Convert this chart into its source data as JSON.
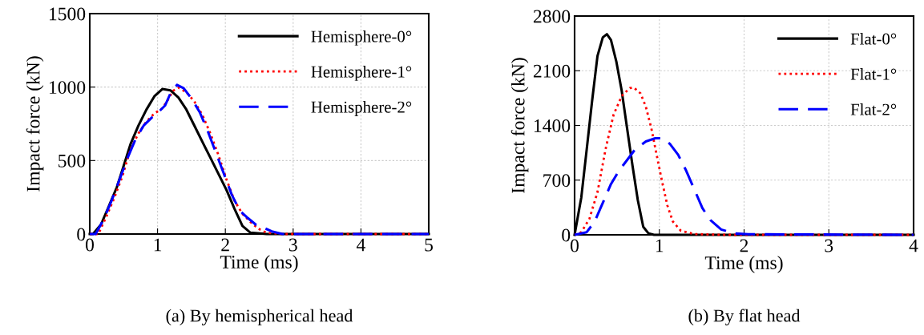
{
  "chart_data": [
    {
      "type": "line",
      "xlabel": "Time (ms)",
      "ylabel": "Impact force (kN)",
      "xlim": [
        0,
        5
      ],
      "xticks": [
        0,
        1,
        2,
        3,
        4,
        5
      ],
      "ylim": [
        0,
        1500
      ],
      "yticks": [
        0,
        500,
        1000,
        1500
      ],
      "grid": true,
      "legend": "top right",
      "annotations": [
        "(a) By hemispherical head"
      ],
      "series": [
        {
          "name": "Hemisphere-0°",
          "color": "#000000",
          "line_style": "solid",
          "x": [
            0,
            0.047,
            0.165,
            0.283,
            0.4,
            0.5,
            0.6,
            0.717,
            0.835,
            0.953,
            1.071,
            1.189,
            1.307,
            1.425,
            1.543,
            1.661,
            1.78,
            1.898,
            2.016,
            2.134,
            2.252,
            2.37,
            2.61,
            5
          ],
          "values": [
            0,
            0,
            64,
            191,
            319,
            464,
            610,
            737,
            846,
            937,
            987,
            978,
            929,
            847,
            738,
            628,
            519,
            410,
            301,
            173,
            55,
            9,
            0,
            0
          ]
        },
        {
          "name": "Hemisphere-1°",
          "color": "#ff0000",
          "line_style": "dotted",
          "x": [
            0,
            0.126,
            0.244,
            0.362,
            0.48,
            0.598,
            0.717,
            0.835,
            0.953,
            1.071,
            1.15,
            1.228,
            1.307,
            1.425,
            1.543,
            1.661,
            1.78,
            1.898,
            2.016,
            2.134,
            2.252,
            2.37,
            2.488,
            2.606,
            2.84,
            5
          ],
          "values": [
            0,
            0,
            118,
            246,
            392,
            574,
            684,
            765,
            820,
            856,
            911,
            974,
            996,
            965,
            902,
            811,
            683,
            537,
            373,
            228,
            137,
            82,
            36,
            9,
            0,
            0
          ]
        },
        {
          "name": "Hemisphere-2°",
          "color": "#0000ff",
          "line_style": "dashed",
          "x": [
            0,
            0.087,
            0.205,
            0.323,
            0.441,
            0.559,
            0.677,
            0.795,
            0.913,
            1.031,
            1.11,
            1.189,
            1.287,
            1.386,
            1.504,
            1.622,
            1.74,
            1.858,
            1.976,
            2.094,
            2.213,
            2.331,
            2.449,
            2.567,
            2.685,
            2.843,
            5
          ],
          "values": [
            0,
            0,
            100,
            228,
            373,
            519,
            647,
            738,
            792,
            838,
            874,
            956,
            1015,
            992,
            920,
            829,
            701,
            557,
            413,
            268,
            159,
            109,
            64,
            42,
            18,
            0,
            0
          ]
        }
      ]
    },
    {
      "type": "line",
      "xlabel": "Time (ms)",
      "ylabel": "Impact force (kN)",
      "xlim": [
        0,
        4
      ],
      "xticks": [
        0,
        1,
        2,
        3,
        4
      ],
      "ylim": [
        0,
        2800
      ],
      "yticks": [
        0,
        700,
        1400,
        2100,
        2800
      ],
      "grid": true,
      "legend": "top right",
      "annotations": [
        "(b) By flat head"
      ],
      "series": [
        {
          "name": "Flat-0°",
          "color": "#000000",
          "line_style": "solid",
          "x": [
            0,
            0.079,
            0.143,
            0.206,
            0.27,
            0.333,
            0.381,
            0.429,
            0.492,
            0.556,
            0.619,
            0.683,
            0.746,
            0.81,
            0.873,
            0.937,
            1.032,
            4
          ],
          "values": [
            0,
            478,
            1093,
            1708,
            2288,
            2527,
            2568,
            2493,
            2220,
            1844,
            1366,
            888,
            444,
            102,
            17,
            0,
            0,
            0
          ]
        },
        {
          "name": "Flat-1°",
          "color": "#ff0000",
          "line_style": "dotted",
          "x": [
            0,
            0.079,
            0.175,
            0.27,
            0.365,
            0.46,
            0.556,
            0.651,
            0.698,
            0.778,
            0.841,
            0.905,
            0.968,
            1.032,
            1.095,
            1.159,
            1.254,
            1.413,
            1.73,
            4
          ],
          "values": [
            0,
            34,
            205,
            546,
            1093,
            1537,
            1776,
            1878,
            1885,
            1810,
            1639,
            1366,
            1025,
            683,
            376,
            171,
            51,
            10,
            0,
            0
          ]
        },
        {
          "name": "Flat-2°",
          "color": "#0000ff",
          "line_style": "dashed",
          "x": [
            0,
            0.143,
            0.238,
            0.333,
            0.429,
            0.524,
            0.619,
            0.714,
            0.841,
            0.952,
            1.032,
            1.127,
            1.222,
            1.317,
            1.413,
            1.508,
            1.603,
            1.73,
            1.889,
            2.048,
            4
          ],
          "values": [
            0,
            34,
            171,
            410,
            649,
            820,
            956,
            1093,
            1195,
            1236,
            1236,
            1161,
            1025,
            820,
            581,
            342,
            188,
            68,
            17,
            7,
            0
          ]
        }
      ]
    }
  ]
}
